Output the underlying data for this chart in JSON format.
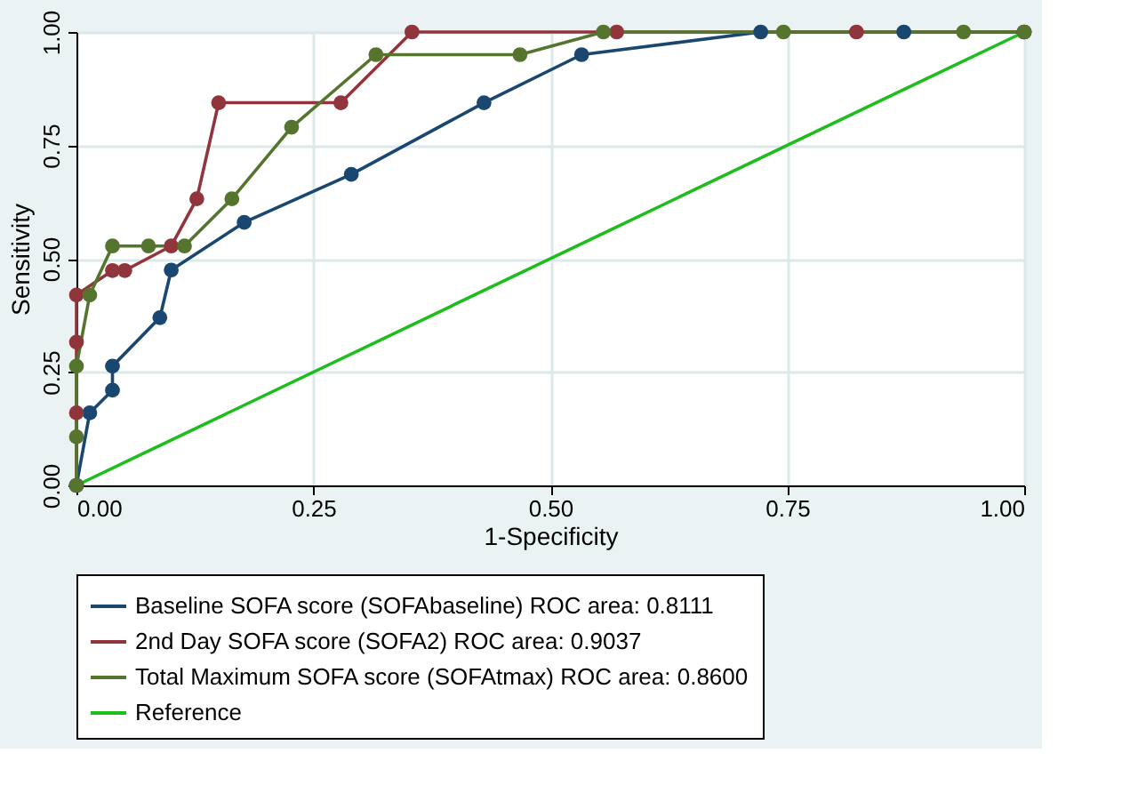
{
  "chart_data": {
    "type": "line",
    "xlabel": "1-Specificity",
    "ylabel": "Sensitivity",
    "xlim": [
      0,
      1
    ],
    "ylim": [
      0,
      1
    ],
    "xticks": [
      {
        "value": 0,
        "label": "0.00"
      },
      {
        "value": 0.25,
        "label": "0.25"
      },
      {
        "value": 0.5,
        "label": "0.50"
      },
      {
        "value": 0.75,
        "label": "0.75"
      },
      {
        "value": 1,
        "label": "1.00"
      }
    ],
    "yticks": [
      {
        "value": 0,
        "label": "0.00"
      },
      {
        "value": 0.25,
        "label": "0.25"
      },
      {
        "value": 0.5,
        "label": "0.50"
      },
      {
        "value": 0.75,
        "label": "0.75"
      },
      {
        "value": 1,
        "label": "1.00"
      }
    ],
    "grid": true,
    "legend": "bottom",
    "marker": "circle",
    "line_style": "solid",
    "series": [
      {
        "name": "Baseline SOFA score (SOFAbaseline) ROC area: 0.8111",
        "color": "#1a476f",
        "x": [
          0,
          0.014,
          0.038,
          0.038,
          0.088,
          0.1,
          0.177,
          0.29,
          0.43,
          0.533,
          0.722,
          0.873,
          1
        ],
        "values": [
          0,
          0.16,
          0.21,
          0.263,
          0.37,
          0.475,
          0.58,
          0.686,
          0.844,
          0.95,
          1,
          1,
          1
        ]
      },
      {
        "name": "2nd Day SOFA score (SOFA2) ROC area: 0.9037",
        "color": "#90353b",
        "x": [
          0,
          0,
          0,
          0,
          0.038,
          0.051,
          0.1,
          0.127,
          0.15,
          0.279,
          0.354,
          0.57,
          0.823,
          1
        ],
        "values": [
          0,
          0.16,
          0.316,
          0.42,
          0.474,
          0.474,
          0.528,
          0.632,
          0.844,
          0.844,
          1,
          1,
          1,
          1
        ]
      },
      {
        "name": "Total Maximum SOFA score (SOFAtmax) ROC area: 0.8600",
        "color": "#55752f",
        "x": [
          0,
          0,
          0,
          0.014,
          0.038,
          0.076,
          0.114,
          0.164,
          0.227,
          0.316,
          0.468,
          0.556,
          0.746,
          0.936,
          1
        ],
        "values": [
          0,
          0.107,
          0.263,
          0.42,
          0.528,
          0.528,
          0.528,
          0.632,
          0.79,
          0.95,
          0.95,
          1,
          1,
          1,
          1
        ]
      },
      {
        "name": "Reference",
        "color": "#1cbd1c",
        "marker": "none",
        "x": [
          0,
          1
        ],
        "values": [
          0,
          1
        ]
      }
    ]
  }
}
